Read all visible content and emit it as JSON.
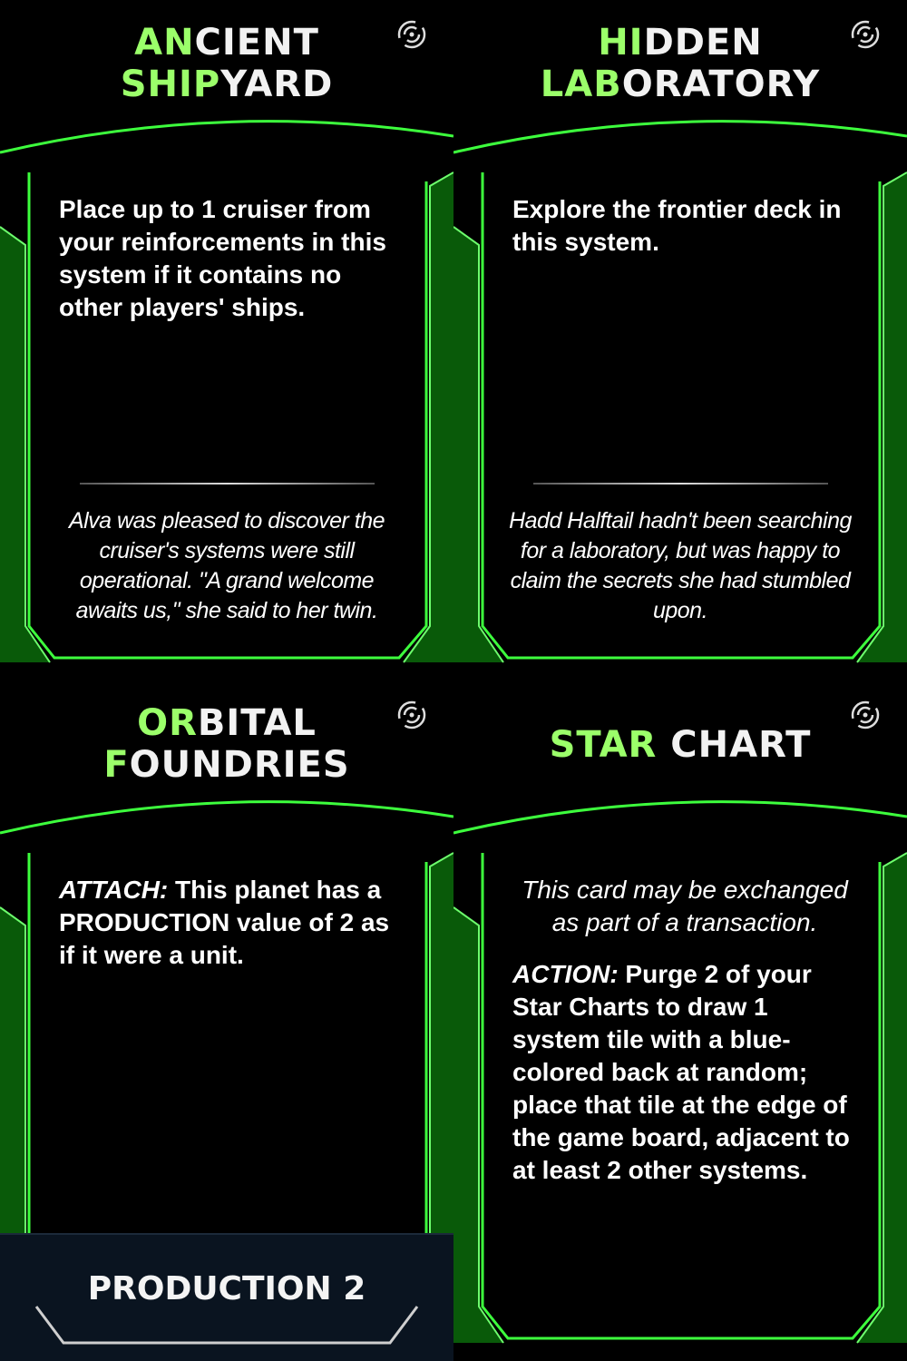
{
  "colors": {
    "accent": "#3dff3d",
    "title_highlight": "#9bff6a",
    "text": "#ffffff"
  },
  "cards": [
    {
      "title_line1_a": "AN",
      "title_line1_b": "CIENT",
      "title_line2_a": "SHIP",
      "title_line2_b": "YARD",
      "icon": "spiral-icon",
      "rules": "Place up to 1 cruiser from your reinforcements in this system if it contains no other players' ships.",
      "flavor": "Alva was pleased to discover the cruiser's systems were still operational. \"A grand welcome awaits us,\" she said to her twin."
    },
    {
      "title_line1_a": "HI",
      "title_line1_b": "DDEN",
      "title_line2_a": "LAB",
      "title_line2_b": "ORATORY",
      "icon": "spiral-icon",
      "rules": "Explore the frontier deck in this system.",
      "flavor": "Hadd Halftail hadn't been searching for a laboratory, but was happy to claim the secrets she had stumbled upon."
    },
    {
      "title_line1_a": "OR",
      "title_line1_b": "BITAL",
      "title_line2_a": "F",
      "title_line2_b": "OUNDRIES",
      "icon": "spiral-icon",
      "rules_keyword": "ATTACH:",
      "rules_text1": " This planet has a ",
      "rules_smallcaps": "PRODUCTION",
      "rules_text2": " value of 2 as if it were a unit.",
      "footer": "PRODUCTION 2"
    },
    {
      "title_a": "STAR",
      "title_b": " CHART",
      "icon": "spiral-icon",
      "rules_italic": "This card may be exchanged as part of a transaction.",
      "action_keyword": "ACTION:",
      "action_text": " Purge 2 of your Star Charts to draw 1 system tile with a blue-colored back at random; place that tile at the edge of the game board, adjacent to at least 2 other systems."
    }
  ]
}
